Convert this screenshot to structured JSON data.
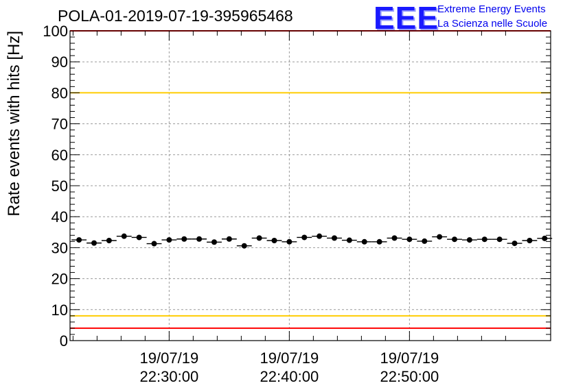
{
  "header": {
    "run_title": "POLA-01-2019-07-19-395965468",
    "logo_text": "EEE",
    "logo_line1": "Extreme Energy Events",
    "logo_line2": "La Scienza nelle Scuole"
  },
  "chart_data": {
    "type": "scatter",
    "title": "POLA-01-2019-07-19-395965468",
    "xlabel": "",
    "ylabel": "Rate events with hits [Hz]",
    "x_unit": "minutes",
    "xlim": [
      21.75,
      61.75
    ],
    "ylim": [
      0,
      100
    ],
    "y_ticks": [
      0,
      10,
      20,
      30,
      40,
      50,
      60,
      70,
      80,
      90,
      100
    ],
    "x_ticks": [
      {
        "minute": 30,
        "date": "19/07/19",
        "time": "22:30:00"
      },
      {
        "minute": 40,
        "date": "19/07/19",
        "time": "22:40:00"
      },
      {
        "minute": 50,
        "date": "19/07/19",
        "time": "22:50:00"
      }
    ],
    "grid": true,
    "reference_lines": [
      {
        "y": 100,
        "color": "#ff0000"
      },
      {
        "y": 80,
        "color": "#ffcc00"
      },
      {
        "y": 8,
        "color": "#ffcc00"
      },
      {
        "y": 4,
        "color": "#ff0000"
      }
    ],
    "marker_color": "#000000",
    "bin_width_minutes": 1.25,
    "series": [
      {
        "x": [
          22.5,
          23.75,
          25.0,
          26.25,
          27.5,
          28.75,
          30.0,
          31.25,
          32.5,
          33.75,
          35.0,
          36.25,
          37.5,
          38.75,
          40.0,
          41.25,
          42.5,
          43.75,
          45.0,
          46.25,
          47.5,
          48.75,
          50.0,
          51.25,
          52.5,
          53.75,
          55.0,
          56.25,
          57.5,
          58.75,
          60.0,
          61.25
        ],
        "y": [
          32.5,
          31.5,
          32.3,
          33.7,
          33.3,
          31.3,
          32.5,
          32.8,
          32.8,
          31.8,
          32.8,
          30.6,
          33.1,
          32.3,
          31.9,
          33.3,
          33.7,
          33.1,
          32.4,
          31.9,
          31.9,
          33.1,
          32.7,
          32.1,
          33.5,
          32.7,
          32.5,
          32.7,
          32.7,
          31.4,
          32.3,
          33.0
        ]
      }
    ]
  }
}
